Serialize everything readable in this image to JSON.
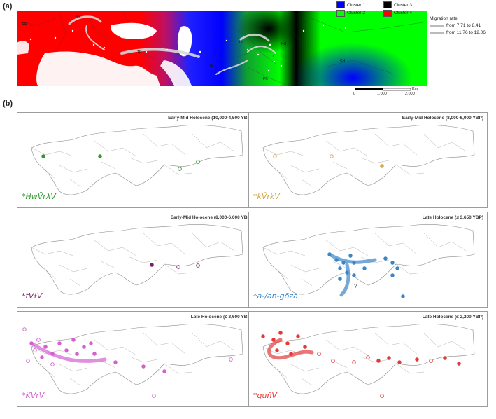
{
  "panel_a": {
    "label": "(a)",
    "legend": [
      {
        "name": "Cluster 1",
        "color": "#0000ff"
      },
      {
        "name": "Cluster 3",
        "color": "#000000"
      },
      {
        "name": "Cluster 2",
        "color": "#00ff00"
      },
      {
        "name": "Cluster 4",
        "color": "#ff0000"
      }
    ],
    "migration_title": "Migration rate",
    "migration_items": [
      "from 7.71 to 8.41",
      "from 11.76 to 12.06"
    ],
    "region_labels": [
      "FR",
      "SK",
      "TR",
      "IR",
      "UZ",
      "KG",
      "TJ",
      "PK",
      "CN"
    ],
    "scale": {
      "ticks": [
        "0",
        "1.000",
        "2.000"
      ],
      "unit": "Km"
    }
  },
  "panel_b": {
    "label": "(b)",
    "panels": [
      {
        "title": "Early-Mid Holocene (10,000-4,500 YBP)",
        "word": "*HwV̆rλV",
        "color": "#2e9a2e"
      },
      {
        "title": "Early-Mid Holocene (8,000-6,000 YBP)",
        "word": "*kV̆rkV",
        "color": "#d4a645"
      },
      {
        "title": "Early-Mid Holocene (8,000-6,000 YBP)",
        "word": "*tVɫV",
        "color": "#7b1f6a"
      },
      {
        "title": "Late Holocene (≤ 3,650 YBP)",
        "word": "*a-/an-gōza",
        "color": "#3a86c8",
        "annotation": "?"
      },
      {
        "title": "Late Holocene (≤ 3,600 YBP)",
        "word": "*KVrV",
        "color": "#d65fd1"
      },
      {
        "title": "Late Holocene (≤ 2,200 YBP)",
        "word": "*gun̆V",
        "color": "#e23a3a"
      }
    ]
  }
}
